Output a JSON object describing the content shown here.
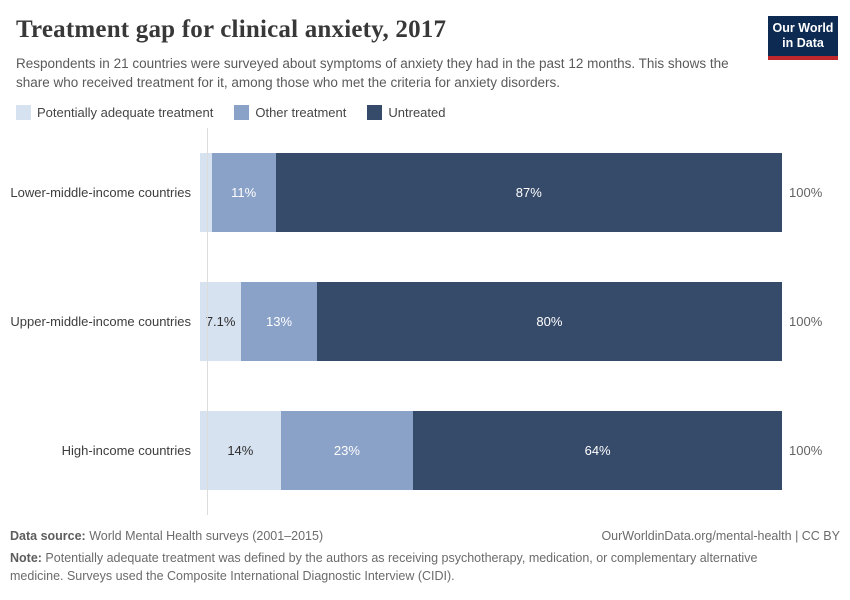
{
  "header": {
    "title": "Treatment gap for clinical anxiety, 2017",
    "subtitle": "Respondents in 21 countries were surveyed about symptoms of anxiety they had in the past 12 months. This shows the share who received treatment for it, among those who met the criteria for anxiety disorders.",
    "logo": {
      "line1": "Our World",
      "line2": "in Data"
    }
  },
  "legend": {
    "items": [
      {
        "label": "Potentially adequate treatment",
        "color": "#d7e2f0"
      },
      {
        "label": "Other treatment",
        "color": "#8ba2c8"
      },
      {
        "label": "Untreated",
        "color": "#364a69"
      }
    ]
  },
  "chart_data": {
    "type": "bar",
    "orientation": "horizontal",
    "stacked": true,
    "xlim": [
      0,
      100
    ],
    "grid": false,
    "legend_position": "top",
    "categories": [
      "Lower-middle-income countries",
      "Upper-middle-income countries",
      "High-income countries"
    ],
    "series": [
      {
        "name": "Potentially adequate treatment",
        "color": "#d7e2f0",
        "values": [
          2,
          7.1,
          14
        ],
        "labels": [
          "",
          "7.1%",
          "14%"
        ]
      },
      {
        "name": "Other treatment",
        "color": "#8ba2c8",
        "values": [
          11,
          13,
          23
        ],
        "labels": [
          "11%",
          "13%",
          "23%"
        ]
      },
      {
        "name": "Untreated",
        "color": "#364a69",
        "values": [
          87,
          80,
          64
        ],
        "labels": [
          "87%",
          "80%",
          "64%"
        ]
      }
    ],
    "totals": [
      "100%",
      "100%",
      "100%"
    ]
  },
  "footer": {
    "source_label": "Data source:",
    "source_text": " World Mental Health surveys (2001–2015)",
    "credit": "OurWorldinData.org/mental-health | CC BY",
    "note_label": "Note:",
    "note_text": " Potentially adequate treatment was defined by the authors as receiving psychotherapy, medication, or complementary alternative medicine. Surveys used the Composite International Diagnostic Interview (CIDI)."
  }
}
